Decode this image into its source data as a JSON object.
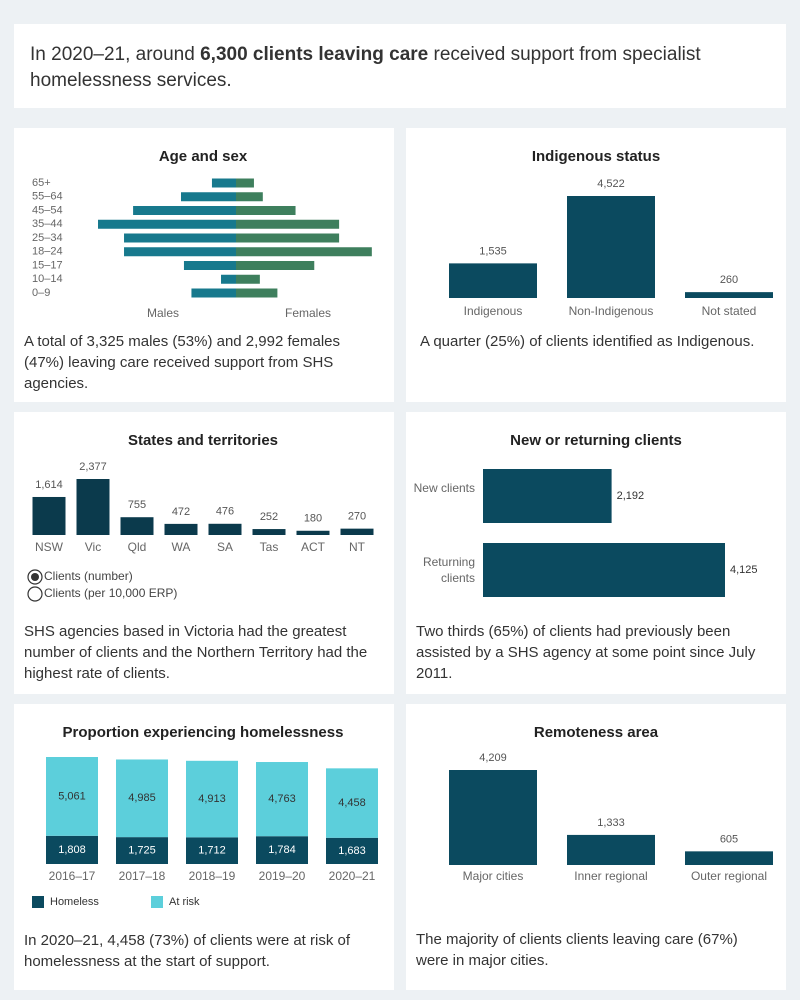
{
  "header": {
    "text": [
      "In 2020–21, around ",
      "6,300",
      " clients leaving care",
      " received support from specialist homelessness services."
    ]
  },
  "chart_data": [
    {
      "type": "butterfly",
      "title": "Age and sex",
      "categories": [
        "65+",
        "55–64",
        "45–54",
        "35–44",
        "25–34",
        "18–24",
        "15–17",
        "10–14",
        "0–9"
      ],
      "series": [
        {
          "name": "Males",
          "color": "#17798d",
          "values": [
            122,
            279,
            522,
            700,
            568,
            568,
            264,
            76,
            226
          ]
        },
        {
          "name": "Females",
          "color": "#3e7f5d",
          "values": [
            91,
            136,
            302,
            523,
            523,
            689,
            397,
            121,
            210
          ]
        }
      ],
      "caption": "A total of 3,325 males (53%) and 2,992  females (47%) leaving care received support from SHS agencies."
    },
    {
      "type": "bar",
      "title": "Indigenous status",
      "categories": [
        "Indigenous",
        "Non-Indigenous",
        "Not stated"
      ],
      "values": [
        1535,
        4522,
        260
      ],
      "value_labels": [
        "1,535",
        "4,522",
        "260"
      ],
      "color": "#0b4a5f",
      "caption": "A quarter (25%) of clients identified as Indigenous."
    },
    {
      "type": "bar",
      "title": "States and territories",
      "categories": [
        "NSW",
        "Vic",
        "Qld",
        "WA",
        "SA",
        "Tas",
        "ACT",
        "NT"
      ],
      "values": [
        1614,
        2377,
        755,
        472,
        476,
        252,
        180,
        270
      ],
      "value_labels": [
        "1,614",
        "2,377",
        "755",
        "472",
        "476",
        "252",
        "180",
        "270"
      ],
      "color": "#0b3a4c",
      "options": [
        "Clients (number)",
        "Clients (per 10,000 ERP)"
      ],
      "selected_option": 0,
      "caption": "SHS agencies based in Victoria had the greatest number of clients and the Northern Territory had the highest rate of clients."
    },
    {
      "type": "hbar",
      "title": "New or returning clients",
      "categories": [
        "New clients",
        "Returning clients"
      ],
      "values": [
        2192,
        4125
      ],
      "value_labels": [
        "2,192",
        "4,125"
      ],
      "color": "#0b4a5f",
      "caption": "Two thirds (65%) of clients  had previously been assisted by a SHS agency at some point since July 2011."
    },
    {
      "type": "stacked_bar",
      "title": "Proportion experiencing homelessness",
      "categories": [
        "2016–17",
        "2017–18",
        "2018–19",
        "2019–20",
        "2020–21"
      ],
      "series": [
        {
          "name": "Homeless",
          "color": "#0b4a5f",
          "values": [
            1808,
            1725,
            1712,
            1784,
            1683
          ],
          "value_labels": [
            "1,808",
            "1,725",
            "1,712",
            "1,784",
            "1,683"
          ]
        },
        {
          "name": "At risk",
          "color": "#5ccfdb",
          "values": [
            5061,
            4985,
            4913,
            4763,
            4458
          ],
          "value_labels": [
            "5,061",
            "4,985",
            "4,913",
            "4,763",
            "4,458"
          ]
        }
      ],
      "legend": "bottom-left",
      "caption": "In 2020–21, 4,458 (73%) of clients were at risk of homelessness at the start of support."
    },
    {
      "type": "bar",
      "title": "Remoteness area",
      "categories": [
        "Major cities",
        "Inner regional",
        "Outer regional"
      ],
      "values": [
        4209,
        1333,
        605
      ],
      "value_labels": [
        "4,209",
        "1,333",
        "605"
      ],
      "color": "#0b4a5f",
      "caption": "The majority  of clients clients leaving care (67%) were in major cities."
    }
  ]
}
